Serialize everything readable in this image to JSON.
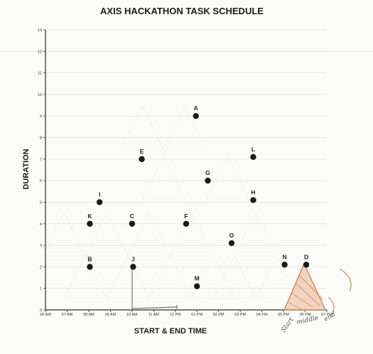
{
  "chart_data": {
    "type": "scatter",
    "title": "AXIS HACKATHON TASK SCHEDULE",
    "xlabel": "START & END TIME",
    "ylabel": "DURATION",
    "x_ticks": [
      "06 AM",
      "07 AM",
      "08 AM",
      "09 AM",
      "10 AM",
      "11 AM",
      "12 PM",
      "01 PM",
      "02 PM",
      "03 PM",
      "04 PM",
      "05 PM",
      "06 PM",
      "07 PM"
    ],
    "xlim": [
      6,
      19
    ],
    "y_ticks": [
      0,
      1,
      2,
      3,
      4,
      5,
      6,
      7,
      8,
      9,
      10,
      11,
      12,
      13
    ],
    "ylim": [
      0,
      13
    ],
    "points": [
      {
        "label": "A",
        "x": 12.95,
        "y": 9
      },
      {
        "label": "B",
        "x": 8.05,
        "y": 2
      },
      {
        "label": "C",
        "x": 10.0,
        "y": 4
      },
      {
        "label": "D",
        "x": 18.05,
        "y": 2.1
      },
      {
        "label": "E",
        "x": 10.45,
        "y": 7
      },
      {
        "label": "F",
        "x": 12.5,
        "y": 4
      },
      {
        "label": "G",
        "x": 13.5,
        "y": 6
      },
      {
        "label": "H",
        "x": 15.6,
        "y": 5.1
      },
      {
        "label": "I",
        "x": 8.5,
        "y": 5
      },
      {
        "label": "J",
        "x": 10.05,
        "y": 2
      },
      {
        "label": "K",
        "x": 8.05,
        "y": 4
      },
      {
        "label": "L",
        "x": 15.6,
        "y": 7.1
      },
      {
        "label": "M",
        "x": 13.0,
        "y": 1.1
      },
      {
        "label": "N",
        "x": 17.05,
        "y": 2.1
      },
      {
        "label": "O",
        "x": 14.6,
        "y": 3.1
      }
    ],
    "annotations": {
      "hand_start": "Start",
      "hand_middle": "middle",
      "hand_end": "end",
      "marker_color": "#c8794a",
      "point_color": "#1a1a1a"
    }
  }
}
